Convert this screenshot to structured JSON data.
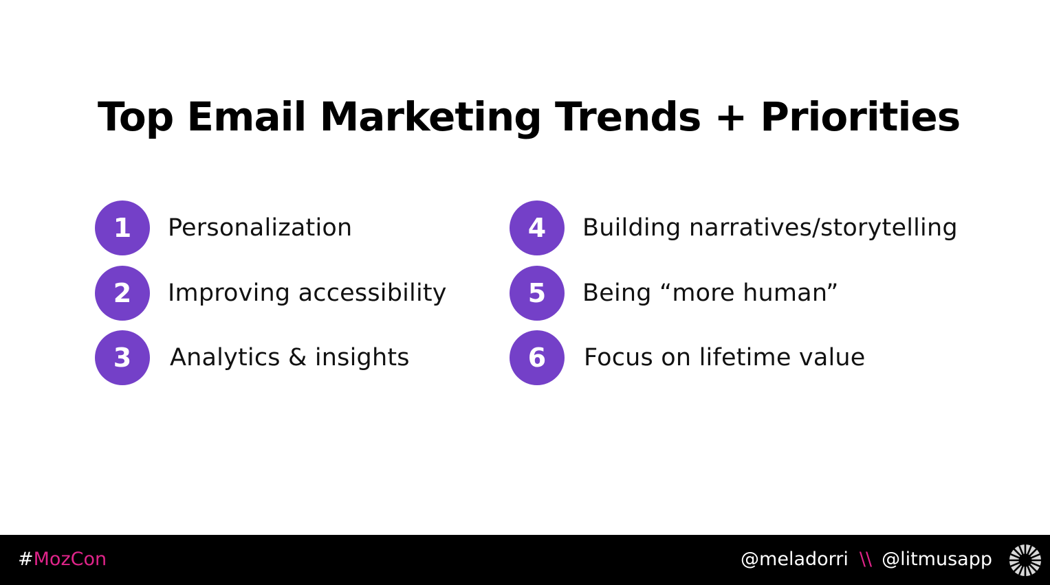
{
  "slide": {
    "title": "Top Email Marketing Trends + Priorities"
  },
  "items": [
    {
      "number": "1",
      "label": "Personalization"
    },
    {
      "number": "2",
      "label": "Improving accessibility"
    },
    {
      "number": "3",
      "label": "Analytics & insights"
    },
    {
      "number": "4",
      "label": "Building narratives/storytelling"
    },
    {
      "number": "5",
      "label": "Being “more human”"
    },
    {
      "number": "6",
      "label": "Focus on lifetime value"
    }
  ],
  "footer": {
    "hash_symbol": "#",
    "hashtag_text": "MozCon",
    "handle_left": "@meladorri",
    "separator": "\\\\",
    "handle_right": "@litmusapp",
    "logo_icon": "litmus-logo-icon"
  },
  "colors": {
    "accent_purple": "#7440c8",
    "accent_pink": "#e0248a",
    "footer_bg": "#000000"
  }
}
